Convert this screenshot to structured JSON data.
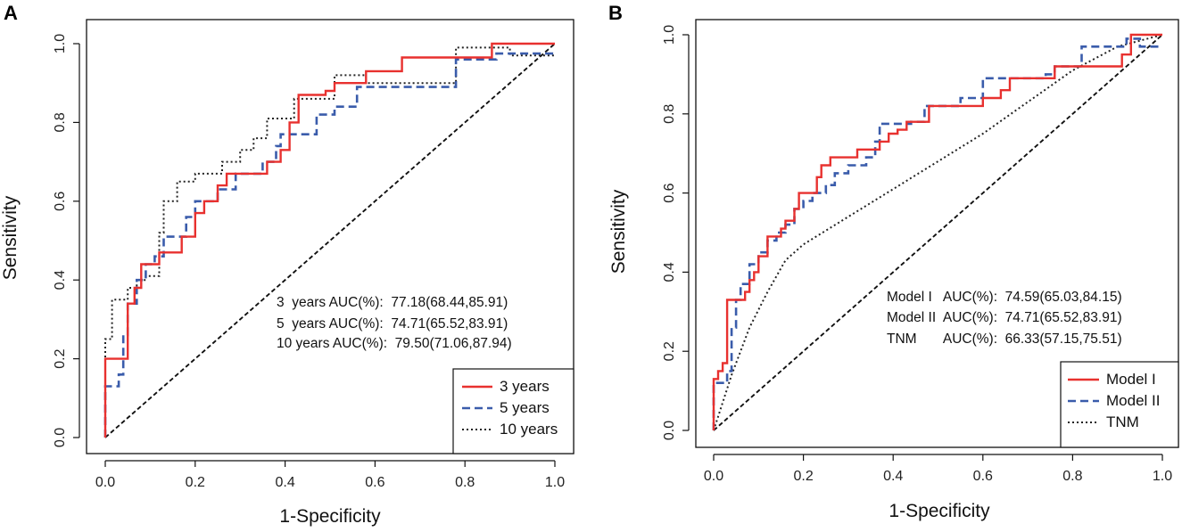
{
  "chart_data": [
    {
      "type": "line",
      "panel": "A",
      "title": "",
      "xlabel": "1-Specificity",
      "ylabel": "Sensitivity",
      "xlim": [
        0,
        1
      ],
      "ylim": [
        0,
        1
      ],
      "xticks": [
        "0.0",
        "0.2",
        "0.4",
        "0.6",
        "0.8",
        "1.0"
      ],
      "yticks": [
        "0.0",
        "0.2",
        "0.4",
        "0.6",
        "0.8",
        "1.0"
      ],
      "annotations": [
        "3  years AUC(%):  77.18(68.44,85.91)",
        "5  years AUC(%):  74.71(65.52,83.91)",
        "10 years AUC(%):  79.50(71.06,87.94)"
      ],
      "legend": [
        "3 years",
        "5 years",
        "10 years"
      ],
      "legend_position": "bottom-right",
      "series": [
        {
          "name": "3 years",
          "color": "#e8312f",
          "dash": "solid",
          "points": [
            [
              0,
              0
            ],
            [
              0,
              0.2
            ],
            [
              0.05,
              0.2
            ],
            [
              0.05,
              0.34
            ],
            [
              0.065,
              0.34
            ],
            [
              0.065,
              0.38
            ],
            [
              0.08,
              0.38
            ],
            [
              0.08,
              0.44
            ],
            [
              0.12,
              0.44
            ],
            [
              0.12,
              0.47
            ],
            [
              0.17,
              0.47
            ],
            [
              0.17,
              0.51
            ],
            [
              0.2,
              0.51
            ],
            [
              0.2,
              0.57
            ],
            [
              0.22,
              0.57
            ],
            [
              0.22,
              0.6
            ],
            [
              0.25,
              0.6
            ],
            [
              0.25,
              0.64
            ],
            [
              0.27,
              0.64
            ],
            [
              0.27,
              0.67
            ],
            [
              0.36,
              0.67
            ],
            [
              0.36,
              0.7
            ],
            [
              0.39,
              0.7
            ],
            [
              0.39,
              0.73
            ],
            [
              0.41,
              0.73
            ],
            [
              0.41,
              0.8
            ],
            [
              0.43,
              0.8
            ],
            [
              0.43,
              0.87
            ],
            [
              0.49,
              0.87
            ],
            [
              0.49,
              0.88
            ],
            [
              0.51,
              0.88
            ],
            [
              0.51,
              0.9
            ],
            [
              0.58,
              0.9
            ],
            [
              0.58,
              0.93
            ],
            [
              0.66,
              0.93
            ],
            [
              0.66,
              0.965
            ],
            [
              0.86,
              0.965
            ],
            [
              0.86,
              1
            ],
            [
              1,
              1
            ]
          ]
        },
        {
          "name": "5 years",
          "color": "#3a5cab",
          "dash": "dashed",
          "points": [
            [
              0,
              0
            ],
            [
              0,
              0.13
            ],
            [
              0.03,
              0.13
            ],
            [
              0.03,
              0.16
            ],
            [
              0.04,
              0.16
            ],
            [
              0.04,
              0.26
            ],
            [
              0.05,
              0.26
            ],
            [
              0.05,
              0.34
            ],
            [
              0.07,
              0.34
            ],
            [
              0.07,
              0.4
            ],
            [
              0.09,
              0.4
            ],
            [
              0.09,
              0.44
            ],
            [
              0.11,
              0.44
            ],
            [
              0.11,
              0.46
            ],
            [
              0.13,
              0.46
            ],
            [
              0.13,
              0.51
            ],
            [
              0.18,
              0.51
            ],
            [
              0.18,
              0.56
            ],
            [
              0.2,
              0.56
            ],
            [
              0.2,
              0.6
            ],
            [
              0.25,
              0.6
            ],
            [
              0.25,
              0.63
            ],
            [
              0.29,
              0.63
            ],
            [
              0.29,
              0.67
            ],
            [
              0.35,
              0.67
            ],
            [
              0.35,
              0.7
            ],
            [
              0.38,
              0.7
            ],
            [
              0.38,
              0.74
            ],
            [
              0.39,
              0.74
            ],
            [
              0.39,
              0.77
            ],
            [
              0.47,
              0.77
            ],
            [
              0.47,
              0.82
            ],
            [
              0.51,
              0.82
            ],
            [
              0.51,
              0.84
            ],
            [
              0.56,
              0.84
            ],
            [
              0.56,
              0.89
            ],
            [
              0.78,
              0.89
            ],
            [
              0.78,
              0.96
            ],
            [
              0.87,
              0.96
            ],
            [
              0.87,
              0.975
            ],
            [
              1,
              0.975
            ]
          ]
        },
        {
          "name": "10 years",
          "color": "#222222",
          "dash": "dotted",
          "points": [
            [
              0,
              0
            ],
            [
              0,
              0.25
            ],
            [
              0.015,
              0.25
            ],
            [
              0.015,
              0.35
            ],
            [
              0.05,
              0.35
            ],
            [
              0.05,
              0.38
            ],
            [
              0.07,
              0.38
            ],
            [
              0.07,
              0.4
            ],
            [
              0.09,
              0.4
            ],
            [
              0.09,
              0.41
            ],
            [
              0.12,
              0.41
            ],
            [
              0.12,
              0.52
            ],
            [
              0.13,
              0.52
            ],
            [
              0.13,
              0.6
            ],
            [
              0.16,
              0.6
            ],
            [
              0.16,
              0.65
            ],
            [
              0.2,
              0.65
            ],
            [
              0.2,
              0.67
            ],
            [
              0.26,
              0.67
            ],
            [
              0.26,
              0.7
            ],
            [
              0.3,
              0.7
            ],
            [
              0.3,
              0.73
            ],
            [
              0.33,
              0.73
            ],
            [
              0.33,
              0.76
            ],
            [
              0.36,
              0.76
            ],
            [
              0.36,
              0.81
            ],
            [
              0.42,
              0.81
            ],
            [
              0.42,
              0.86
            ],
            [
              0.51,
              0.86
            ],
            [
              0.51,
              0.92
            ],
            [
              0.58,
              0.92
            ],
            [
              0.58,
              0.9
            ],
            [
              0.78,
              0.9
            ],
            [
              0.78,
              0.99
            ],
            [
              0.9,
              0.99
            ],
            [
              0.9,
              0.97
            ],
            [
              1,
              0.97
            ]
          ]
        },
        {
          "name": "reference",
          "color": "#111111",
          "dash": "reference",
          "points": [
            [
              0,
              0
            ],
            [
              1,
              1
            ]
          ]
        }
      ]
    },
    {
      "type": "line",
      "panel": "B",
      "title": "",
      "xlabel": "1-Specificity",
      "ylabel": "Sensitivity",
      "xlim": [
        0,
        1
      ],
      "ylim": [
        0,
        1
      ],
      "xticks": [
        "0.0",
        "0.2",
        "0.4",
        "0.6",
        "0.8",
        "1.0"
      ],
      "yticks": [
        "0.0",
        "0.2",
        "0.4",
        "0.6",
        "0.8",
        "1.0"
      ],
      "annotations": [
        "Model I   AUC(%):  74.59(65.03,84.15)",
        "Model II  AUC(%):  74.71(65.52,83.91)",
        "TNM       AUC(%):  66.33(57.15,75.51)"
      ],
      "legend": [
        "Model I",
        "Model II",
        "TNM"
      ],
      "legend_position": "bottom-right",
      "series": [
        {
          "name": "Model I",
          "color": "#e8312f",
          "dash": "solid",
          "points": [
            [
              0,
              0
            ],
            [
              0,
              0.13
            ],
            [
              0.01,
              0.13
            ],
            [
              0.01,
              0.15
            ],
            [
              0.02,
              0.15
            ],
            [
              0.02,
              0.17
            ],
            [
              0.03,
              0.17
            ],
            [
              0.03,
              0.33
            ],
            [
              0.07,
              0.33
            ],
            [
              0.07,
              0.35
            ],
            [
              0.08,
              0.35
            ],
            [
              0.08,
              0.38
            ],
            [
              0.09,
              0.38
            ],
            [
              0.09,
              0.4
            ],
            [
              0.1,
              0.4
            ],
            [
              0.1,
              0.44
            ],
            [
              0.12,
              0.44
            ],
            [
              0.12,
              0.49
            ],
            [
              0.15,
              0.49
            ],
            [
              0.15,
              0.51
            ],
            [
              0.16,
              0.51
            ],
            [
              0.16,
              0.53
            ],
            [
              0.18,
              0.53
            ],
            [
              0.18,
              0.56
            ],
            [
              0.19,
              0.56
            ],
            [
              0.19,
              0.6
            ],
            [
              0.23,
              0.6
            ],
            [
              0.23,
              0.64
            ],
            [
              0.24,
              0.64
            ],
            [
              0.24,
              0.67
            ],
            [
              0.26,
              0.67
            ],
            [
              0.26,
              0.69
            ],
            [
              0.32,
              0.69
            ],
            [
              0.32,
              0.71
            ],
            [
              0.37,
              0.71
            ],
            [
              0.37,
              0.73
            ],
            [
              0.39,
              0.73
            ],
            [
              0.39,
              0.75
            ],
            [
              0.41,
              0.75
            ],
            [
              0.41,
              0.76
            ],
            [
              0.43,
              0.76
            ],
            [
              0.43,
              0.78
            ],
            [
              0.48,
              0.78
            ],
            [
              0.48,
              0.82
            ],
            [
              0.6,
              0.82
            ],
            [
              0.6,
              0.84
            ],
            [
              0.64,
              0.84
            ],
            [
              0.64,
              0.86
            ],
            [
              0.66,
              0.86
            ],
            [
              0.66,
              0.89
            ],
            [
              0.76,
              0.89
            ],
            [
              0.76,
              0.92
            ],
            [
              0.91,
              0.92
            ],
            [
              0.91,
              0.95
            ],
            [
              0.93,
              0.95
            ],
            [
              0.93,
              1
            ],
            [
              1,
              1
            ]
          ]
        },
        {
          "name": "Model II",
          "color": "#3a5cab",
          "dash": "dashed",
          "points": [
            [
              0,
              0
            ],
            [
              0,
              0.12
            ],
            [
              0.03,
              0.12
            ],
            [
              0.03,
              0.15
            ],
            [
              0.04,
              0.15
            ],
            [
              0.04,
              0.26
            ],
            [
              0.05,
              0.26
            ],
            [
              0.05,
              0.33
            ],
            [
              0.06,
              0.33
            ],
            [
              0.06,
              0.37
            ],
            [
              0.08,
              0.37
            ],
            [
              0.08,
              0.42
            ],
            [
              0.1,
              0.42
            ],
            [
              0.1,
              0.45
            ],
            [
              0.12,
              0.45
            ],
            [
              0.12,
              0.48
            ],
            [
              0.14,
              0.48
            ],
            [
              0.14,
              0.5
            ],
            [
              0.16,
              0.5
            ],
            [
              0.16,
              0.52
            ],
            [
              0.18,
              0.52
            ],
            [
              0.18,
              0.56
            ],
            [
              0.2,
              0.56
            ],
            [
              0.2,
              0.58
            ],
            [
              0.22,
              0.58
            ],
            [
              0.22,
              0.6
            ],
            [
              0.25,
              0.6
            ],
            [
              0.25,
              0.62
            ],
            [
              0.27,
              0.62
            ],
            [
              0.27,
              0.65
            ],
            [
              0.3,
              0.65
            ],
            [
              0.3,
              0.67
            ],
            [
              0.34,
              0.67
            ],
            [
              0.34,
              0.69
            ],
            [
              0.36,
              0.69
            ],
            [
              0.36,
              0.73
            ],
            [
              0.37,
              0.73
            ],
            [
              0.37,
              0.775
            ],
            [
              0.44,
              0.775
            ],
            [
              0.44,
              0.78
            ],
            [
              0.47,
              0.78
            ],
            [
              0.47,
              0.82
            ],
            [
              0.55,
              0.82
            ],
            [
              0.55,
              0.84
            ],
            [
              0.6,
              0.84
            ],
            [
              0.6,
              0.89
            ],
            [
              0.74,
              0.89
            ],
            [
              0.74,
              0.9
            ],
            [
              0.76,
              0.9
            ],
            [
              0.76,
              0.92
            ],
            [
              0.82,
              0.92
            ],
            [
              0.82,
              0.97
            ],
            [
              0.92,
              0.97
            ],
            [
              0.92,
              0.99
            ],
            [
              0.95,
              0.99
            ],
            [
              0.95,
              0.97
            ],
            [
              1,
              0.97
            ]
          ]
        },
        {
          "name": "TNM",
          "color": "#222222",
          "dash": "dotted",
          "points": [
            [
              0,
              0
            ],
            [
              0.04,
              0.14
            ],
            [
              0.08,
              0.26
            ],
            [
              0.12,
              0.35
            ],
            [
              0.16,
              0.43
            ],
            [
              0.2,
              0.47
            ],
            [
              0.3,
              0.54
            ],
            [
              0.4,
              0.61
            ],
            [
              0.5,
              0.68
            ],
            [
              0.6,
              0.75
            ],
            [
              0.7,
              0.83
            ],
            [
              0.8,
              0.91
            ],
            [
              0.9,
              0.97
            ],
            [
              1,
              1
            ]
          ]
        },
        {
          "name": "reference",
          "color": "#111111",
          "dash": "reference",
          "points": [
            [
              0,
              0
            ],
            [
              1,
              1
            ]
          ]
        }
      ]
    }
  ]
}
